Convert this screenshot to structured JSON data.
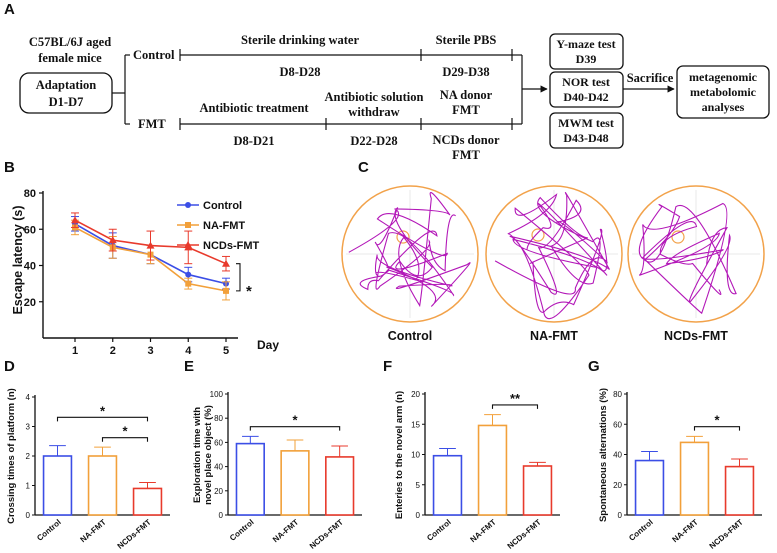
{
  "colors": {
    "control": "#3b4ee6",
    "na": "#f2a03a",
    "ncds": "#e83a2c",
    "track": "#b318b8",
    "arena": "#f2a24a"
  },
  "panel_labels": {
    "a": "A",
    "b": "B",
    "c": "C",
    "d": "D",
    "e": "E",
    "f": "F",
    "g": "G"
  },
  "schematic": {
    "mice_line1": "C57BL/6J aged",
    "mice_line2": "female mice",
    "adaptation": "Adaptation",
    "adaptation_days": "D1-D7",
    "control": "Control",
    "fmt": "FMT",
    "sterile_water": "Sterile drinking water",
    "sterile_pbs": "Sterile PBS",
    "d8_d28": "D8-D28",
    "d29_d38": "D29-D38",
    "antibiotic": "Antibiotic treatment",
    "withdraw_line1": "Antibiotic solution",
    "withdraw_line2": "withdraw",
    "na_donor_line1": "NA donor",
    "na_donor_line2": "FMT",
    "d8_d21": "D8-D21",
    "d22_d28": "D22-D28",
    "ncds_donor_line1": "NCDs donor",
    "ncds_donor_line2": "FMT",
    "ymaze_line1": "Y-maze test",
    "ymaze_line2": "D39",
    "nor_line1": "NOR test",
    "nor_line2": "D40-D42",
    "mwm_line1": "MWM test",
    "mwm_line2": "D43-D48",
    "sacrifice": "Sacrifice",
    "analyses_line1": "metagenomic",
    "analyses_line2": "metabolomic",
    "analyses_line3": "analyses"
  },
  "chart_data": [
    {
      "panel": "B",
      "type": "line",
      "xlabel": "Day",
      "ylabel": "Escape latency (s)",
      "x": [
        1,
        2,
        3,
        4,
        5
      ],
      "ylim": [
        0,
        80
      ],
      "yticks": [
        20,
        40,
        60,
        80
      ],
      "legend": "top-right",
      "significance": "*",
      "series": [
        {
          "name": "Control",
          "values": [
            63,
            51,
            46,
            35,
            30
          ],
          "errors": [
            4,
            7,
            5,
            4,
            3
          ]
        },
        {
          "name": "NA-FMT",
          "values": [
            61,
            50,
            46,
            30,
            26
          ],
          "errors": [
            4,
            6,
            5,
            3,
            5
          ]
        },
        {
          "name": "NCDs-FMT",
          "values": [
            65,
            54,
            51,
            50,
            41
          ],
          "errors": [
            4,
            6,
            8,
            9,
            4
          ]
        }
      ]
    },
    {
      "panel": "D",
      "type": "bar",
      "ylabel": "Crossing times of  platform (n)",
      "categories": [
        "Control",
        "NA-FMT",
        "NCDs-FMT"
      ],
      "values": [
        2.0,
        2.0,
        0.9
      ],
      "errors": [
        0.35,
        0.3,
        0.2
      ],
      "ylim": [
        0,
        4
      ],
      "yticks": [
        0,
        1,
        2,
        3,
        4
      ],
      "significance": [
        {
          "from": 0,
          "to": 2,
          "label": "*"
        },
        {
          "from": 1,
          "to": 2,
          "label": "*"
        }
      ]
    },
    {
      "panel": "E",
      "type": "bar",
      "ylabel_line1": "Exploration time with",
      "ylabel_line2": "novel place object (%)",
      "categories": [
        "Control",
        "NA-FMT",
        "NCDs-FMT"
      ],
      "values": [
        59,
        53,
        48
      ],
      "errors": [
        6,
        9,
        9
      ],
      "ylim": [
        0,
        100
      ],
      "yticks": [
        0,
        20,
        40,
        60,
        80,
        100
      ],
      "significance": [
        {
          "from": 0,
          "to": 2,
          "label": "*"
        }
      ]
    },
    {
      "panel": "F",
      "type": "bar",
      "ylabel": "Enteries to the novel arm (n)",
      "categories": [
        "Control",
        "NA-FMT",
        "NCDs-FMT"
      ],
      "values": [
        9.8,
        14.8,
        8.1
      ],
      "errors": [
        1.2,
        1.8,
        0.6
      ],
      "ylim": [
        0,
        20
      ],
      "yticks": [
        0,
        5,
        10,
        15,
        20
      ],
      "significance": [
        {
          "from": 1,
          "to": 2,
          "label": "**"
        }
      ]
    },
    {
      "panel": "G",
      "type": "bar",
      "ylabel": "Spontaneous alternations (%)",
      "categories": [
        "Control",
        "NA-FMT",
        "NCDs-FMT"
      ],
      "values": [
        36,
        48,
        32
      ],
      "errors": [
        6,
        4,
        5
      ],
      "ylim": [
        0,
        80
      ],
      "yticks": [
        0,
        20,
        40,
        60,
        80
      ],
      "significance": [
        {
          "from": 1,
          "to": 2,
          "label": "*"
        }
      ]
    }
  ],
  "tracks": {
    "titles": [
      "Control",
      "NA-FMT",
      "NCDs-FMT"
    ]
  }
}
